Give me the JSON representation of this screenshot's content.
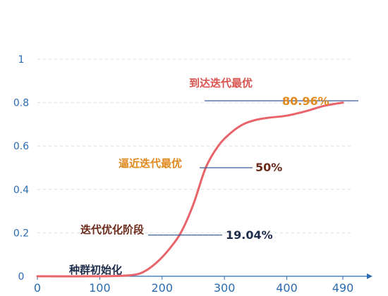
{
  "chart_data": {
    "type": "line",
    "title": "",
    "xlabel": "",
    "ylabel": "",
    "xlim": [
      0,
      530
    ],
    "ylim": [
      0,
      1
    ],
    "x_ticks": [
      "0",
      "100",
      "200",
      "300",
      "400",
      "490"
    ],
    "x_tick_values": [
      0,
      100,
      200,
      300,
      400,
      490
    ],
    "y_ticks": [
      "0",
      "0.2",
      "0.4",
      "0.6",
      "0.8",
      "1"
    ],
    "y_tick_values": [
      0,
      0.2,
      0.4,
      0.6,
      0.8,
      1
    ],
    "grid": true,
    "series": [
      {
        "color": "#e8646a",
        "x": [
          0,
          100,
          150,
          170,
          190,
          210,
          230,
          250,
          270,
          290,
          310,
          330,
          350,
          370,
          400,
          430,
          460,
          490
        ],
        "y": [
          0,
          0,
          0.005,
          0.02,
          0.06,
          0.12,
          0.2,
          0.33,
          0.5,
          0.6,
          0.66,
          0.7,
          0.72,
          0.73,
          0.74,
          0.76,
          0.785,
          0.8
        ]
      }
    ],
    "annotations": [
      {
        "text": "种群初始化",
        "x": 0,
        "y": 0,
        "color": "#1f2d4d"
      },
      {
        "text": "迭代优化阶段",
        "value": "19.04%",
        "x": 190,
        "y": 0.19,
        "color": "#6b2a1a",
        "value_color": "#1f2d4d"
      },
      {
        "text": "逼近迭代最优",
        "value": "50%",
        "x": 265,
        "y": 0.5,
        "color": "#e08a1e",
        "value_color": "#6b2a1a"
      },
      {
        "text": "到达迭代最优",
        "value": "80.96%",
        "x": 470,
        "y": 0.81,
        "color": "#d9534f",
        "value_color": "#e08a1e"
      }
    ]
  }
}
